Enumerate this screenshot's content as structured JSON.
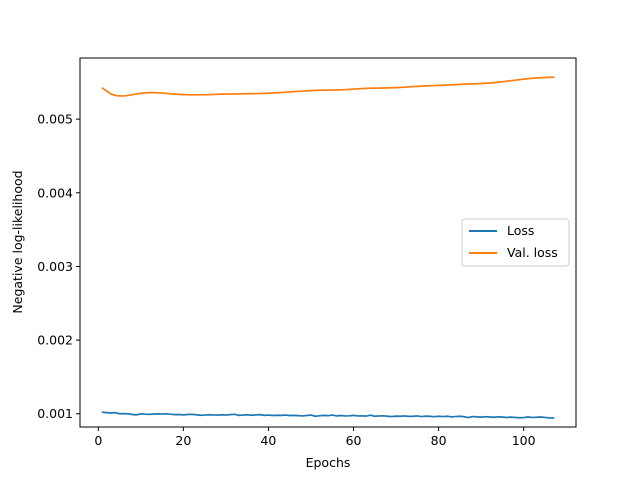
{
  "chart_data": {
    "type": "line",
    "title": "",
    "xlabel": "Epochs",
    "ylabel": "Negative log-likelihood",
    "xlim": [
      -4.3,
      112.3
    ],
    "ylim": [
      0.00082,
      0.00583
    ],
    "x_ticks": [
      0,
      20,
      40,
      60,
      80,
      100
    ],
    "x_tick_labels": [
      "0",
      "20",
      "40",
      "60",
      "80",
      "100"
    ],
    "y_ticks": [
      0.001,
      0.002,
      0.003,
      0.004,
      0.005
    ],
    "y_tick_labels": [
      "0.001",
      "0.002",
      "0.003",
      "0.004",
      "0.005"
    ],
    "grid": false,
    "legend_position": "center-right",
    "x": [
      1,
      2,
      3,
      4,
      5,
      6,
      7,
      8,
      9,
      10,
      11,
      12,
      13,
      14,
      15,
      16,
      17,
      18,
      19,
      20,
      21,
      22,
      23,
      24,
      25,
      26,
      27,
      28,
      29,
      30,
      31,
      32,
      33,
      34,
      35,
      36,
      37,
      38,
      39,
      40,
      41,
      42,
      43,
      44,
      45,
      46,
      47,
      48,
      49,
      50,
      51,
      52,
      53,
      54,
      55,
      56,
      57,
      58,
      59,
      60,
      61,
      62,
      63,
      64,
      65,
      66,
      67,
      68,
      69,
      70,
      71,
      72,
      73,
      74,
      75,
      76,
      77,
      78,
      79,
      80,
      81,
      82,
      83,
      84,
      85,
      86,
      87,
      88,
      89,
      90,
      91,
      92,
      93,
      94,
      95,
      96,
      97,
      98,
      99,
      100,
      101,
      102,
      103,
      104,
      105,
      106,
      107
    ],
    "series": [
      {
        "name": "Loss",
        "color": "#1f77b4",
        "values": [
          0.00102,
          0.001015,
          0.00101,
          0.001015,
          0.001,
          0.001002,
          0.000998,
          0.00099,
          0.000985,
          0.000998,
          0.000994,
          0.000992,
          0.000995,
          0.000998,
          0.000996,
          0.000999,
          0.000994,
          0.000988,
          0.00099,
          0.000985,
          0.00099,
          0.000992,
          0.000986,
          0.00098,
          0.000982,
          0.000986,
          0.000984,
          0.000982,
          0.000986,
          0.000982,
          0.000988,
          0.000992,
          0.000978,
          0.000982,
          0.000986,
          0.00098,
          0.000984,
          0.000988,
          0.000978,
          0.000982,
          0.000976,
          0.00098,
          0.000978,
          0.000982,
          0.000976,
          0.000978,
          0.000974,
          0.00097,
          0.000976,
          0.000982,
          0.000966,
          0.000972,
          0.000978,
          0.000974,
          0.000982,
          0.00097,
          0.000976,
          0.00097,
          0.000972,
          0.000978,
          0.00097,
          0.000972,
          0.000968,
          0.00098,
          0.000966,
          0.00097,
          0.000972,
          0.000966,
          0.000962,
          0.000968,
          0.000966,
          0.00097,
          0.000964,
          0.000966,
          0.00097,
          0.000962,
          0.000968,
          0.000964,
          0.00096,
          0.000966,
          0.000962,
          0.000966,
          0.000958,
          0.000962,
          0.000966,
          0.00096,
          0.000948,
          0.000962,
          0.000958,
          0.000954,
          0.00096,
          0.000956,
          0.000952,
          0.000958,
          0.000956,
          0.00095,
          0.000954,
          0.00095,
          0.000946,
          0.000948,
          0.000956,
          0.00095,
          0.000952,
          0.000956,
          0.00095,
          0.000944,
          0.000942
        ]
      },
      {
        "name": "Val. loss",
        "color": "#ff7f0e",
        "values": [
          0.00542,
          0.00538,
          0.00534,
          0.005322,
          0.005315,
          0.005315,
          0.005322,
          0.005332,
          0.005342,
          0.00535,
          0.005356,
          0.00536,
          0.00536,
          0.005358,
          0.005354,
          0.00535,
          0.005345,
          0.00534,
          0.005336,
          0.005333,
          0.005331,
          0.00533,
          0.00533,
          0.005331,
          0.005332,
          0.005333,
          0.005335,
          0.005337,
          0.005339,
          0.00534,
          0.005341,
          0.005342,
          0.005343,
          0.005344,
          0.005345,
          0.005346,
          0.005347,
          0.005348,
          0.00535,
          0.005352,
          0.005355,
          0.005358,
          0.005362,
          0.005366,
          0.00537,
          0.005374,
          0.005378,
          0.005381,
          0.005384,
          0.005387,
          0.00539,
          0.005392,
          0.005393,
          0.005394,
          0.005395,
          0.005396,
          0.005398,
          0.0054,
          0.005404,
          0.005408,
          0.005412,
          0.005415,
          0.005418,
          0.00542,
          0.005421,
          0.005422,
          0.005423,
          0.005424,
          0.005426,
          0.005428,
          0.005431,
          0.005434,
          0.005438,
          0.005442,
          0.005445,
          0.005448,
          0.005451,
          0.005454,
          0.005456,
          0.005458,
          0.00546,
          0.005463,
          0.005466,
          0.005469,
          0.005472,
          0.005475,
          0.005477,
          0.005479,
          0.005481,
          0.005484,
          0.005487,
          0.005491,
          0.005496,
          0.005502,
          0.005508,
          0.005515,
          0.005522,
          0.005529,
          0.005536,
          0.005543,
          0.005549,
          0.005555,
          0.00556,
          0.005563,
          0.005565,
          0.005567,
          0.005568
        ]
      }
    ]
  }
}
